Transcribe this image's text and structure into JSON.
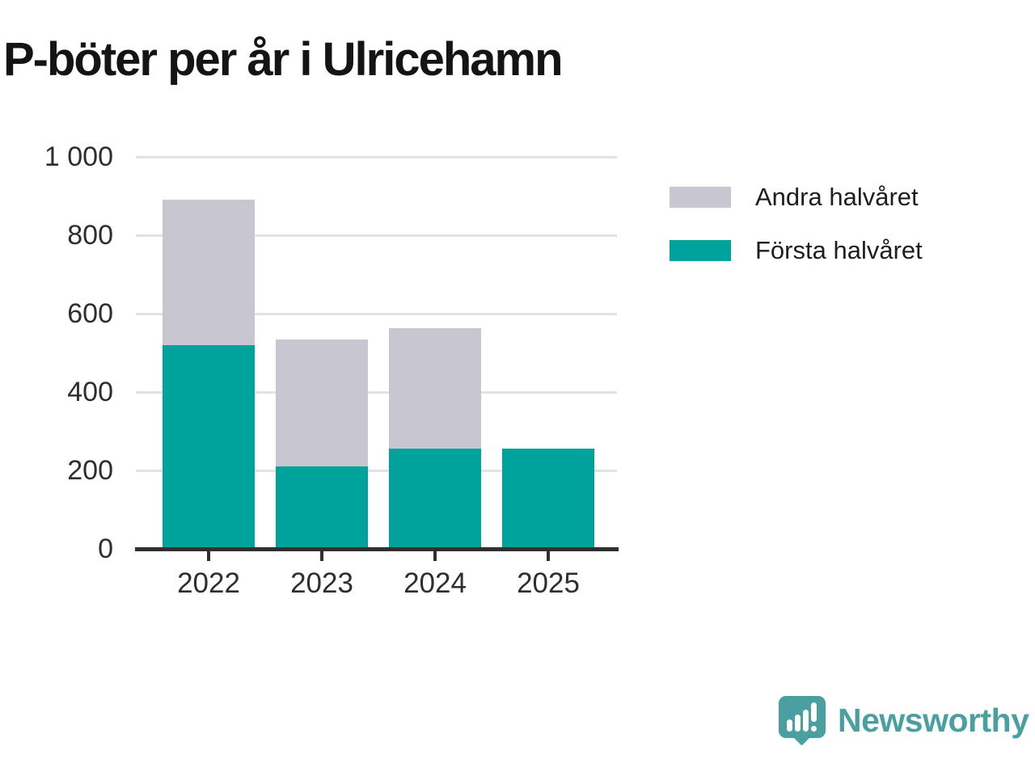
{
  "title": "P-böter per år i Ulricehamn",
  "chart_data": {
    "type": "bar",
    "stacked": true,
    "title": "P-böter per år i Ulricehamn",
    "categories": [
      "2022",
      "2023",
      "2024",
      "2025"
    ],
    "series": [
      {
        "name": "Första halvåret",
        "color": "#00a39b",
        "values": [
          520,
          210,
          256,
          256
        ]
      },
      {
        "name": "Andra halvåret",
        "color": "#c8c6d0",
        "values": [
          371,
          324,
          307,
          0
        ]
      }
    ],
    "totals": [
      891,
      534,
      563,
      256
    ],
    "xlabel": "",
    "ylabel": "",
    "ylim": [
      0,
      1000
    ],
    "yticks": [
      0,
      200,
      400,
      600,
      800,
      1000
    ],
    "ytick_labels": [
      "0",
      "200",
      "400",
      "600",
      "800",
      "1 000"
    ],
    "grid": "horizontal",
    "legend": {
      "position": "top-right",
      "entries": [
        {
          "label": "Andra halvåret",
          "color": "#c8c6d0"
        },
        {
          "label": "Första halvåret",
          "color": "#00a39b"
        }
      ]
    }
  },
  "footer": {
    "brand": "Newsworthy",
    "brand_color": "#4aa0a0",
    "logo_icon": "newsworthy-speech-bubble-barchart-icon"
  },
  "colors": {
    "background": "#ffffff",
    "title_text": "#141414",
    "axis_text": "#2e2e2e",
    "axis_line": "#2f2f2f",
    "gridline": "#e2e2e2",
    "first_half_teal": "#00a39b",
    "second_half_gray": "#c8c6d0",
    "brand_teal": "#4aa0a0"
  }
}
